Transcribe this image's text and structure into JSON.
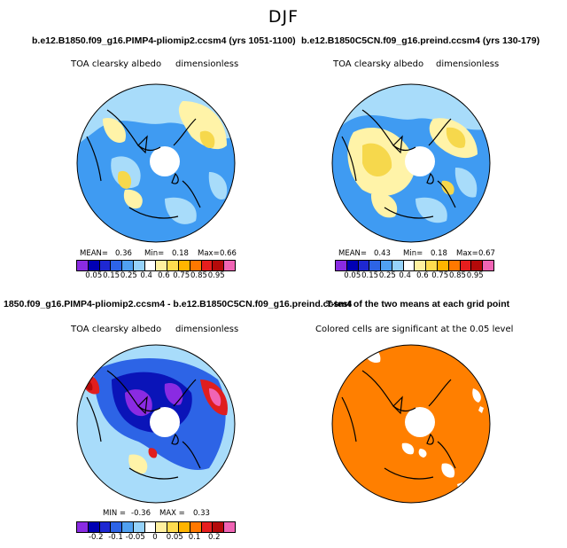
{
  "figure_title": "DJF",
  "panels": [
    {
      "title": "b.e12.B1850.f09_g16.PIMP4-pliomip2.ccsm4 (yrs 1051-1100)",
      "variable": "TOA clearsky albedo",
      "units": "dimensionless",
      "stats": {
        "mean_label": "MEAN=",
        "mean": "0.36",
        "min_label": "Min=",
        "min": "0.18",
        "max_label": "Max=",
        "max": "0.66"
      }
    },
    {
      "title": "b.e12.B1850C5CN.f09_g16.preind.ccsm4 (yrs 130-179)",
      "variable": "TOA clearsky albedo",
      "units": "dimensionless",
      "stats": {
        "mean_label": "MEAN=",
        "mean": "0.43",
        "min_label": "Min=",
        "min": "0.18",
        "max_label": "Max=",
        "max": "0.67"
      }
    },
    {
      "title": "1850.f09_g16.PIMP4-pliomip2.ccsm4 - b.e12.B1850C5CN.f09_g16.preind.ccsm4",
      "variable": "TOA clearsky albedo",
      "units": "dimensionless",
      "stats": {
        "min_label": "MIN =",
        "min": "-0.36",
        "max_label": "MAX =",
        "max": "0.33"
      }
    },
    {
      "title": "T-test of the two means at each grid point",
      "note": "Colored cells are significant at the 0.05 level"
    }
  ],
  "colorbars": {
    "albedo": {
      "colors": [
        "#8a2be2",
        "#0000b4",
        "#1e28d2",
        "#2d64e6",
        "#50a0f0",
        "#96d2fa",
        "#ffffff",
        "#fff0a0",
        "#ffdc50",
        "#ffb400",
        "#ff7800",
        "#e61e1e",
        "#b40a0a",
        "#f064b4"
      ],
      "labels": [
        "0.05",
        "0.15",
        "0.25",
        "0.4",
        "0.6",
        "0.75",
        "0.85",
        "0.95"
      ]
    },
    "difference": {
      "colors": [
        "#8a2be2",
        "#0000b4",
        "#1e28d2",
        "#2d64e6",
        "#50a0f0",
        "#96d2fa",
        "#ffffff",
        "#fff0a0",
        "#ffdc50",
        "#ffb400",
        "#ff7800",
        "#e61e1e",
        "#b40a0a",
        "#f064b4"
      ],
      "labels": [
        "-0.2",
        "-0.1",
        "-0.05",
        "0",
        "0.05",
        "0.1",
        "0.2"
      ]
    }
  },
  "colors": {
    "ocean_blue": "#3f9bf2",
    "light_blue": "#a8dcfa",
    "pale_yellow": "#fff3a8",
    "yellow": "#f6d84c",
    "deep_blue": "#0a14b8",
    "purple": "#8a2be2",
    "red": "#e01e1e",
    "orange": "#ff7f00"
  }
}
